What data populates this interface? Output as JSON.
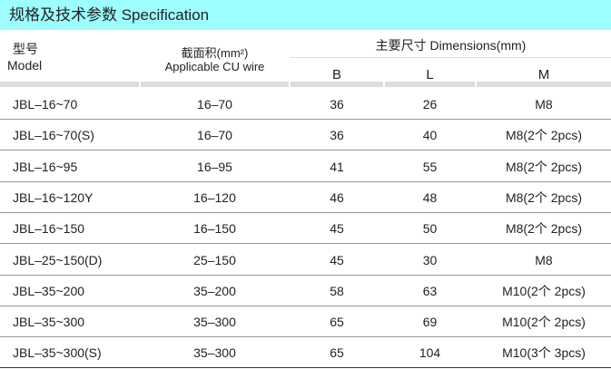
{
  "title": "规格及技术参数  Specification",
  "header": {
    "model_cn": "型号",
    "model_en": "Model",
    "wire_cn": "截面积(mm²)",
    "wire_en": "Applicable CU wire",
    "dim": "主要尺寸  Dimensions(mm)",
    "b": "B",
    "l": "L",
    "m": "M"
  },
  "rows": [
    [
      "JBL–16~70",
      "16–70",
      "36",
      "26",
      "M8"
    ],
    [
      "JBL–16~70(S)",
      "16–70",
      "36",
      "40",
      "M8(2个 2pcs)"
    ],
    [
      "JBL–16~95",
      "16–95",
      "41",
      "55",
      "M8(2个 2pcs)"
    ],
    [
      "JBL–16~120Y",
      "16–120",
      "46",
      "48",
      "M8(2个 2pcs)"
    ],
    [
      "JBL–16~150",
      "16–150",
      "45",
      "50",
      "M8(2个 2pcs)"
    ],
    [
      "JBL–25~150(D)",
      "25–150",
      "45",
      "30",
      "M8"
    ],
    [
      "JBL–35~200",
      "35–200",
      "58",
      "63",
      "M10(2个 2pcs)"
    ],
    [
      "JBL–35~300",
      "35–300",
      "65",
      "69",
      "M10(2个 2pcs)"
    ],
    [
      "JBL–35~300(S)",
      "35–300",
      "65",
      "104",
      "M10(3个 3pcs)"
    ]
  ],
  "colors": {
    "title_band": "#9dfdff"
  }
}
